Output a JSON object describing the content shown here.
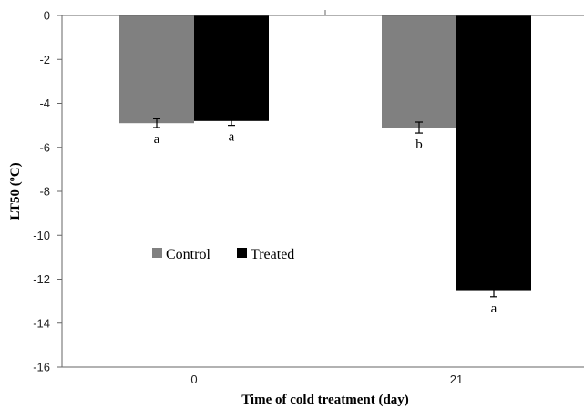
{
  "chart_data": {
    "type": "bar",
    "title": "",
    "xlabel": "Time of cold treatment (day)",
    "ylabel": "LT50 (ºC)",
    "ylim": [
      -16,
      0
    ],
    "yticks": [
      "0",
      "-2",
      "-4",
      "-6",
      "-8",
      "-10",
      "-12",
      "-14",
      "-16"
    ],
    "categories": [
      "0",
      "21"
    ],
    "series": [
      {
        "name": "Control",
        "color": "#808080",
        "values": [
          -4.9,
          -5.1
        ],
        "errors": [
          0.2,
          0.25
        ],
        "significance": [
          "a",
          "b"
        ]
      },
      {
        "name": "Treated",
        "color": "#000000",
        "values": [
          -4.8,
          -12.5
        ],
        "errors": [
          0.2,
          0.3
        ],
        "significance": [
          "a",
          "a"
        ]
      }
    ],
    "legend": "inside-left",
    "grid": false
  }
}
